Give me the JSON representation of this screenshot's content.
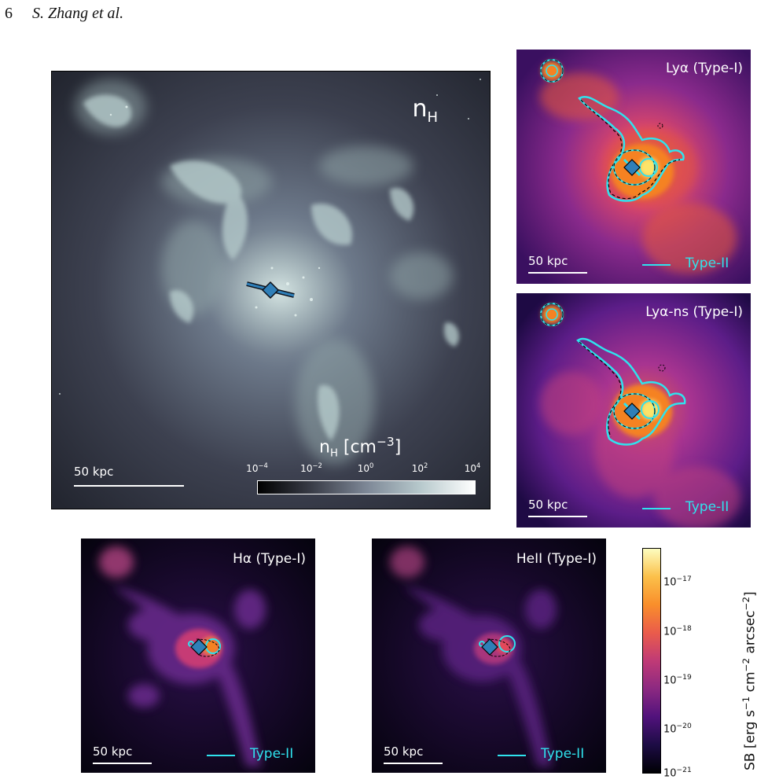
{
  "header": {
    "page_number": "6",
    "authors": "S. Zhang et al."
  },
  "main_panel": {
    "label": "n",
    "label_sub": "H",
    "scale_label": "50 kpc",
    "colorbar": {
      "title_base": "n",
      "title_sub": "H",
      "title_unit": "[cm",
      "title_exp": "−3",
      "title_close": "]",
      "ticks": [
        {
          "base": "10",
          "exp": "−4"
        },
        {
          "base": "10",
          "exp": "−2"
        },
        {
          "base": "10",
          "exp": "0"
        },
        {
          "base": "10",
          "exp": "2"
        },
        {
          "base": "10",
          "exp": "4"
        }
      ]
    }
  },
  "panels": {
    "lya": {
      "label": "Lyα (Type-I)",
      "scale_label": "50 kpc",
      "legend": "Type-II"
    },
    "lyans": {
      "label": "Lyα-ns (Type-I)",
      "scale_label": "50 kpc",
      "legend": "Type-II"
    },
    "ha": {
      "label": "Hα (Type-I)",
      "scale_label": "50 kpc",
      "legend": "Type-II"
    },
    "heii": {
      "label": "HeII (Type-I)",
      "scale_label": "50 kpc",
      "legend": "Type-II"
    }
  },
  "sb_colorbar": {
    "label": "SB [erg s",
    "label_e1": "−1",
    "label_mid": " cm",
    "label_e2": "−2",
    "label_mid2": " arcsec",
    "label_e3": "−2",
    "label_end": "]",
    "ticks": [
      {
        "base": "10",
        "exp": "−17"
      },
      {
        "base": "10",
        "exp": "−18"
      },
      {
        "base": "10",
        "exp": "−19"
      },
      {
        "base": "10",
        "exp": "−20"
      },
      {
        "base": "10",
        "exp": "−21"
      }
    ]
  },
  "colors": {
    "type2_contour": "#2fe3ee",
    "type1_contour": "#000000",
    "marker": "#2f7fb8"
  }
}
